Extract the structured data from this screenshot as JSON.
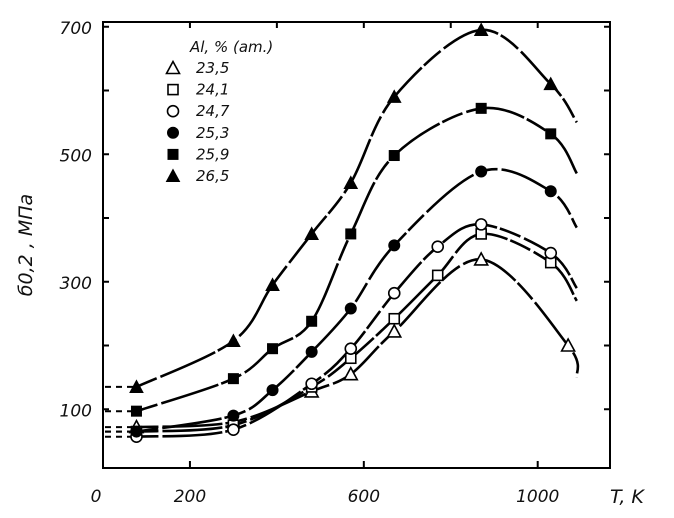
{
  "chart_data": {
    "type": "line",
    "title": "",
    "xlabel": "T, K",
    "ylabel": "б0,2 , МПа",
    "xlim": [
      0,
      1150
    ],
    "ylim": [
      0,
      720
    ],
    "x_ticks": [
      "0",
      "200",
      "600",
      "1000"
    ],
    "x_tick_values": [
      0,
      200,
      600,
      1000
    ],
    "y_ticks": [
      "100",
      "300",
      "500",
      "700"
    ],
    "y_tick_values": [
      100,
      300,
      500,
      700
    ],
    "grid": false,
    "legend_title": "Al, % (am.)",
    "legend_position": "top-left",
    "series": [
      {
        "name": "23,5",
        "marker": "triangle-open",
        "x": [
          77,
          300,
          480,
          570,
          670,
          870,
          1070
        ],
        "y": [
          72,
          80,
          128,
          155,
          222,
          335,
          200
        ]
      },
      {
        "name": "24,1",
        "marker": "square-open",
        "x": [
          77,
          300,
          480,
          570,
          670,
          770,
          870,
          1030
        ],
        "y": [
          65,
          75,
          135,
          180,
          242,
          310,
          375,
          330
        ]
      },
      {
        "name": "24,7",
        "marker": "circle-open",
        "x": [
          77,
          300,
          480,
          570,
          670,
          770,
          870,
          1030
        ],
        "y": [
          57,
          68,
          140,
          195,
          282,
          355,
          390,
          345
        ]
      },
      {
        "name": "25,3",
        "marker": "circle-filled",
        "x": [
          77,
          300,
          390,
          480,
          570,
          670,
          870,
          1030
        ],
        "y": [
          65,
          90,
          130,
          190,
          258,
          357,
          473,
          442
        ]
      },
      {
        "name": "25,9",
        "marker": "square-filled",
        "x": [
          77,
          300,
          390,
          480,
          570,
          670,
          870,
          1030
        ],
        "y": [
          97,
          148,
          195,
          238,
          375,
          498,
          572,
          532
        ]
      },
      {
        "name": "26,5",
        "marker": "triangle-filled",
        "x": [
          77,
          300,
          390,
          480,
          570,
          670,
          870,
          1030
        ],
        "y": [
          135,
          207,
          295,
          375,
          455,
          590,
          695,
          610
        ]
      }
    ]
  }
}
